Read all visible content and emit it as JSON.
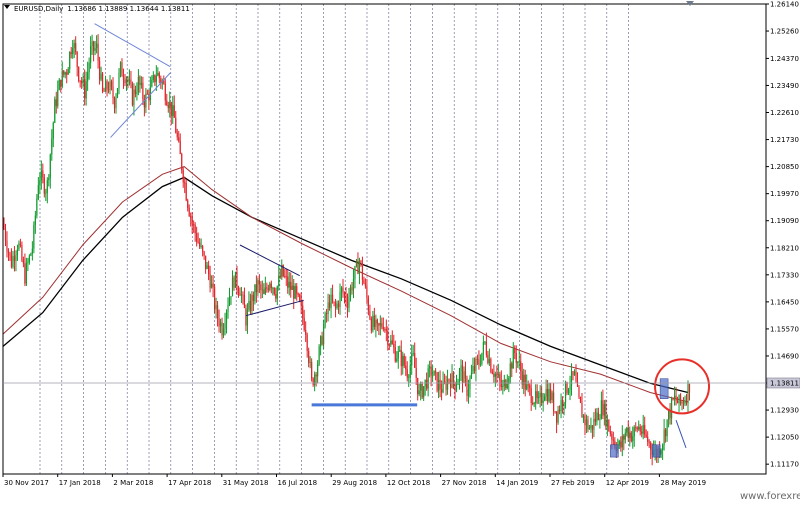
{
  "header": {
    "symbol": "EURUSD,Daily",
    "ohlc": "1.13686 1.13889 1.13644 1.13811"
  },
  "watermark": "www.forexre.com",
  "colors": {
    "bull": "#109a2c",
    "bear": "#e0242a",
    "ma_fast": "#a03030",
    "ma_slow": "#000000",
    "trendline": "#6f86d8",
    "triangle_dark": "#1c1c6a",
    "support": "#4a78d8",
    "circle": "#e8302a",
    "grid": "#5c5c8a",
    "price_tag_bg": "#c8c8d8"
  },
  "chart_data": {
    "type": "candlestick",
    "price_axis": {
      "ticks": [
        "1.26140",
        "1.25260",
        "1.24370",
        "1.23490",
        "1.22610",
        "1.21730",
        "1.20850",
        "1.19970",
        "1.19090",
        "1.18210",
        "1.17330",
        "1.16450",
        "1.15570",
        "1.14690",
        "1.13811",
        "1.12930",
        "1.12050",
        "1.11170"
      ],
      "ylim": [
        1.1085,
        1.2614
      ],
      "current_price": "1.13811"
    },
    "time_axis": {
      "ticks": [
        "30 Nov 2017",
        "17 Jan 2018",
        "2 Mar 2018",
        "17 Apr 2018",
        "31 May 2018",
        "16 Jul 2018",
        "29 Aug 2018",
        "12 Oct 2018",
        "27 Nov 2018",
        "14 Jan 2019",
        "27 Feb 2019",
        "12 Apr 2019",
        "28 May 2019"
      ]
    },
    "price_path": [
      [
        0,
        1.19
      ],
      [
        8,
        1.177
      ],
      [
        15,
        1.184
      ],
      [
        22,
        1.173
      ],
      [
        30,
        1.183
      ],
      [
        36,
        1.206
      ],
      [
        44,
        1.201
      ],
      [
        52,
        1.228
      ],
      [
        58,
        1.237
      ],
      [
        64,
        1.24
      ],
      [
        70,
        1.25
      ],
      [
        76,
        1.239
      ],
      [
        82,
        1.233
      ],
      [
        88,
        1.246
      ],
      [
        94,
        1.247
      ],
      [
        100,
        1.232
      ],
      [
        106,
        1.235
      ],
      [
        112,
        1.23
      ],
      [
        118,
        1.24
      ],
      [
        124,
        1.238
      ],
      [
        130,
        1.231
      ],
      [
        136,
        1.236
      ],
      [
        142,
        1.23
      ],
      [
        148,
        1.233
      ],
      [
        154,
        1.239
      ],
      [
        160,
        1.236
      ],
      [
        166,
        1.23
      ],
      [
        172,
        1.224
      ],
      [
        176,
        1.215
      ],
      [
        180,
        1.208
      ],
      [
        185,
        1.198
      ],
      [
        190,
        1.19
      ],
      [
        196,
        1.184
      ],
      [
        202,
        1.178
      ],
      [
        208,
        1.172
      ],
      [
        214,
        1.161
      ],
      [
        220,
        1.156
      ],
      [
        226,
        1.165
      ],
      [
        232,
        1.172
      ],
      [
        238,
        1.169
      ],
      [
        244,
        1.159
      ],
      [
        250,
        1.165
      ],
      [
        256,
        1.17
      ],
      [
        262,
        1.166
      ],
      [
        268,
        1.172
      ],
      [
        274,
        1.168
      ],
      [
        280,
        1.174
      ],
      [
        286,
        1.17
      ],
      [
        292,
        1.168
      ],
      [
        298,
        1.163
      ],
      [
        304,
        1.156
      ],
      [
        310,
        1.138
      ],
      [
        316,
        1.145
      ],
      [
        322,
        1.156
      ],
      [
        328,
        1.165
      ],
      [
        334,
        1.162
      ],
      [
        340,
        1.168
      ],
      [
        346,
        1.165
      ],
      [
        352,
        1.172
      ],
      [
        358,
        1.178
      ],
      [
        364,
        1.168
      ],
      [
        370,
        1.158
      ],
      [
        376,
        1.155
      ],
      [
        382,
        1.158
      ],
      [
        388,
        1.152
      ],
      [
        394,
        1.148
      ],
      [
        400,
        1.146
      ],
      [
        406,
        1.142
      ],
      [
        412,
        1.146
      ],
      [
        418,
        1.134
      ],
      [
        424,
        1.138
      ],
      [
        430,
        1.142
      ],
      [
        436,
        1.138
      ],
      [
        442,
        1.136
      ],
      [
        448,
        1.14
      ],
      [
        454,
        1.138
      ],
      [
        460,
        1.142
      ],
      [
        466,
        1.136
      ],
      [
        472,
        1.142
      ],
      [
        478,
        1.145
      ],
      [
        484,
        1.151
      ],
      [
        490,
        1.144
      ],
      [
        496,
        1.14
      ],
      [
        502,
        1.136
      ],
      [
        508,
        1.142
      ],
      [
        514,
        1.148
      ],
      [
        520,
        1.142
      ],
      [
        526,
        1.136
      ],
      [
        532,
        1.134
      ],
      [
        538,
        1.131
      ],
      [
        544,
        1.136
      ],
      [
        550,
        1.134
      ],
      [
        556,
        1.128
      ],
      [
        562,
        1.133
      ],
      [
        568,
        1.138
      ],
      [
        574,
        1.14
      ],
      [
        578,
        1.132
      ],
      [
        584,
        1.126
      ],
      [
        590,
        1.123
      ],
      [
        596,
        1.127
      ],
      [
        602,
        1.131
      ],
      [
        608,
        1.124
      ],
      [
        614,
        1.119
      ],
      [
        620,
        1.117
      ],
      [
        626,
        1.123
      ],
      [
        632,
        1.121
      ],
      [
        638,
        1.124
      ],
      [
        644,
        1.121
      ],
      [
        650,
        1.118
      ],
      [
        656,
        1.115
      ],
      [
        662,
        1.119
      ],
      [
        668,
        1.127
      ],
      [
        674,
        1.133
      ],
      [
        680,
        1.131
      ],
      [
        686,
        1.134
      ],
      [
        690,
        1.1381
      ]
    ],
    "moving_averages": [
      {
        "role": "ma_slow",
        "points": [
          [
            0,
            1.15
          ],
          [
            40,
            1.161
          ],
          [
            80,
            1.178
          ],
          [
            120,
            1.192
          ],
          [
            160,
            1.202
          ],
          [
            182,
            1.205
          ],
          [
            210,
            1.199
          ],
          [
            250,
            1.192
          ],
          [
            300,
            1.185
          ],
          [
            350,
            1.178
          ],
          [
            400,
            1.172
          ],
          [
            450,
            1.165
          ],
          [
            500,
            1.157
          ],
          [
            550,
            1.15
          ],
          [
            600,
            1.144
          ],
          [
            650,
            1.138
          ],
          [
            688,
            1.135
          ]
        ]
      },
      {
        "role": "ma_fast",
        "points": [
          [
            0,
            1.154
          ],
          [
            40,
            1.166
          ],
          [
            80,
            1.183
          ],
          [
            120,
            1.197
          ],
          [
            160,
            1.206
          ],
          [
            182,
            1.2085
          ],
          [
            210,
            1.201
          ],
          [
            250,
            1.192
          ],
          [
            300,
            1.1835
          ],
          [
            350,
            1.1755
          ],
          [
            400,
            1.168
          ],
          [
            450,
            1.16
          ],
          [
            500,
            1.151
          ],
          [
            550,
            1.145
          ],
          [
            600,
            1.141
          ],
          [
            650,
            1.135
          ],
          [
            688,
            1.132
          ]
        ]
      }
    ],
    "drawings": {
      "upper_triangle": [
        [
          92,
          1.255
        ],
        [
          168,
          1.241
        ],
        [
          108,
          1.218
        ],
        [
          168,
          1.239
        ]
      ],
      "lower_triangle": [
        [
          238,
          1.183
        ],
        [
          298,
          1.173
        ],
        [
          244,
          1.16
        ],
        [
          302,
          1.165
        ]
      ],
      "support_line": [
        [
          310,
          1.131
        ],
        [
          416,
          1.131
        ]
      ],
      "down_arrow": [
        [
          676,
          1.126
        ],
        [
          686,
          1.117
        ]
      ],
      "highlight_circle": {
        "x": 682,
        "y": 1.137
      },
      "boxes": [
        [
          664,
          1.1395,
          1.133
        ],
        [
          614,
          1.118,
          1.114
        ],
        [
          656,
          1.118,
          1.114
        ]
      ]
    },
    "period_separators": 28
  }
}
